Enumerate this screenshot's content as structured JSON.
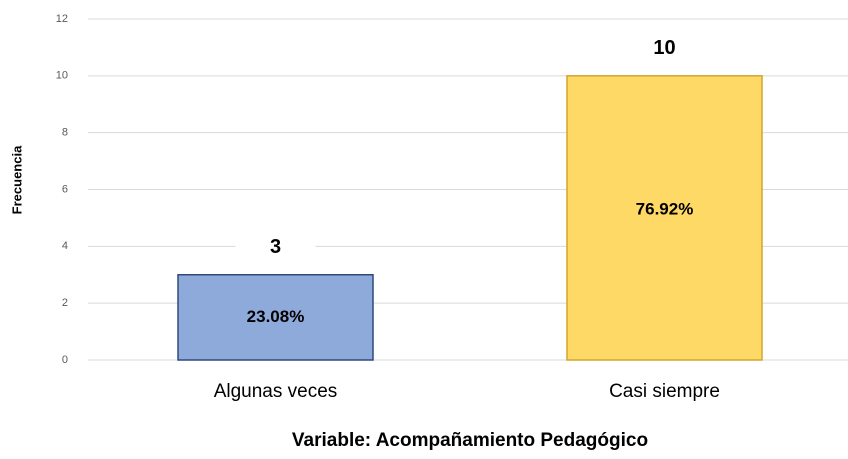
{
  "chart_data": {
    "type": "bar",
    "x_label": "Variable: Acompañamiento Pedagógico",
    "y_label": "Frecuencia",
    "categories": [
      "Algunas veces",
      "Casi siempre"
    ],
    "values": [
      3,
      10
    ],
    "percent_labels": [
      "23.08%",
      "76.92%"
    ],
    "colors": [
      "#8eaadb",
      "#ffd966"
    ],
    "edge_colors": [
      "#2f4a7a",
      "#d4a52c"
    ],
    "ylim": [
      0,
      12
    ],
    "yticks": [
      0,
      2,
      4,
      6,
      8,
      10,
      12
    ],
    "grid": true
  }
}
